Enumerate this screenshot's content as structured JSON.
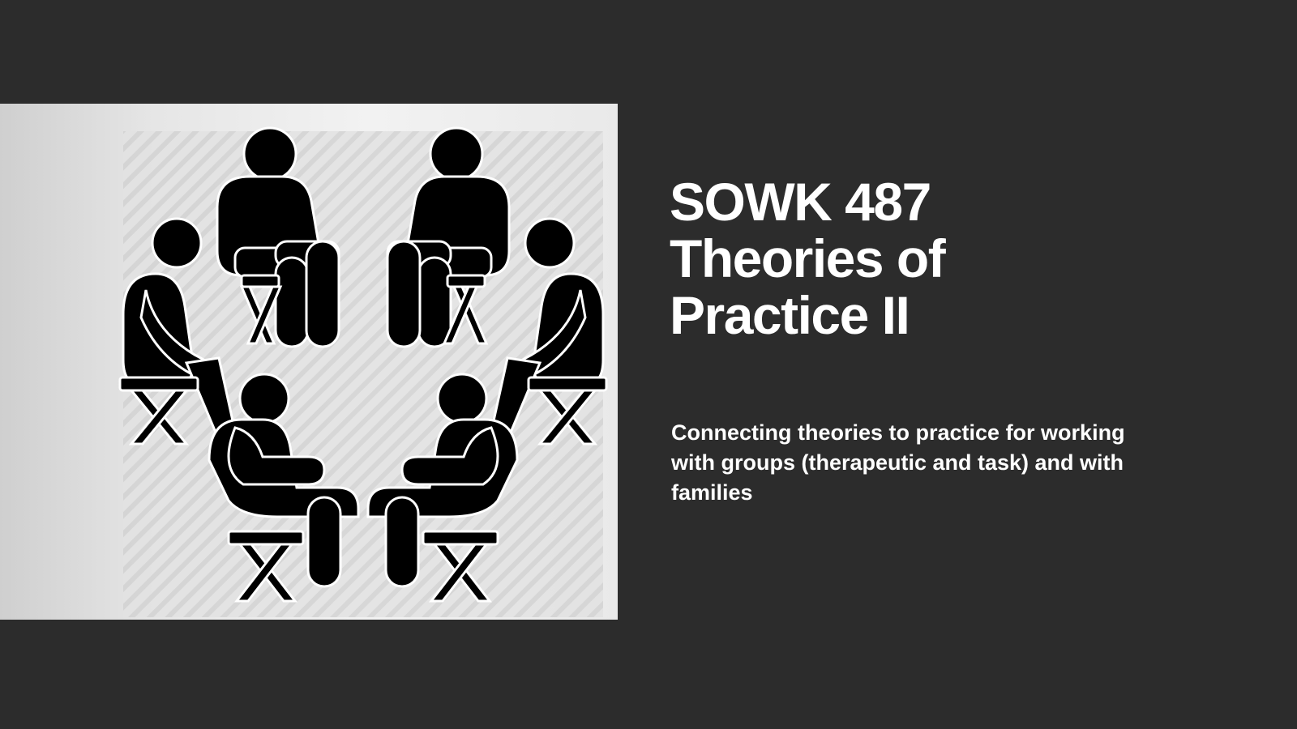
{
  "slide": {
    "title_lines": [
      "SOWK 487",
      "Theories of",
      "Practice II"
    ],
    "subtitle": "Connecting theories to practice for working with groups (therapeutic and task) and with families"
  },
  "image": {
    "icon": "group-therapy-circle-icon",
    "description_name": "six seated people pictogram"
  },
  "colors": {
    "background": "#2c2c2c",
    "text": "#ffffff",
    "pictogram": "#000000"
  }
}
